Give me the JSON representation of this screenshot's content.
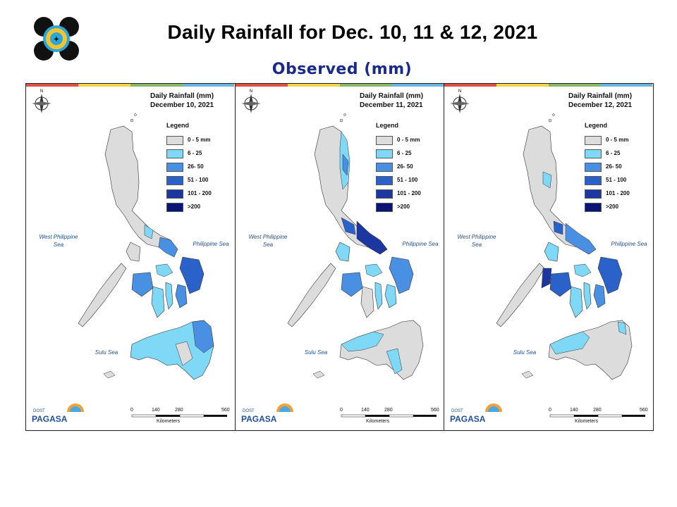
{
  "header": {
    "title": "Daily Rainfall for Dec. 10, 11 & 12, 2021",
    "subtitle": "Observed (mm)"
  },
  "legend": {
    "title": "Legend",
    "classes": [
      {
        "label": "0 - 5 mm",
        "color": "#dcdcdc"
      },
      {
        "label": "6 - 25",
        "color": "#7fd8f5"
      },
      {
        "label": "26- 50",
        "color": "#4a90e2"
      },
      {
        "label": "51 - 100",
        "color": "#2a62c9"
      },
      {
        "label": "101 - 200",
        "color": "#1c37a0"
      },
      {
        "label": ">200",
        "color": "#0a1578"
      }
    ]
  },
  "seas": {
    "west": "West Philippine Sea",
    "east": "Philippine Sea",
    "sulu": "Sulu Sea"
  },
  "scale": {
    "ticks": [
      "0",
      "140",
      "280",
      "560"
    ],
    "unit": "Kilometers"
  },
  "panels": [
    {
      "title_line1": "Daily Rainfall (mm)",
      "title_line2": "December 10, 2021"
    },
    {
      "title_line1": "Daily Rainfall (mm)",
      "title_line2": "December 11, 2021"
    },
    {
      "title_line1": "Daily Rainfall (mm)",
      "title_line2": "December 12, 2021"
    }
  ],
  "branding": {
    "agency": "PAGASA",
    "office": "DOST"
  },
  "strip_colors": [
    "#e0504a",
    "#f2d64a",
    "#8ab86a",
    "#6ab6e0"
  ]
}
